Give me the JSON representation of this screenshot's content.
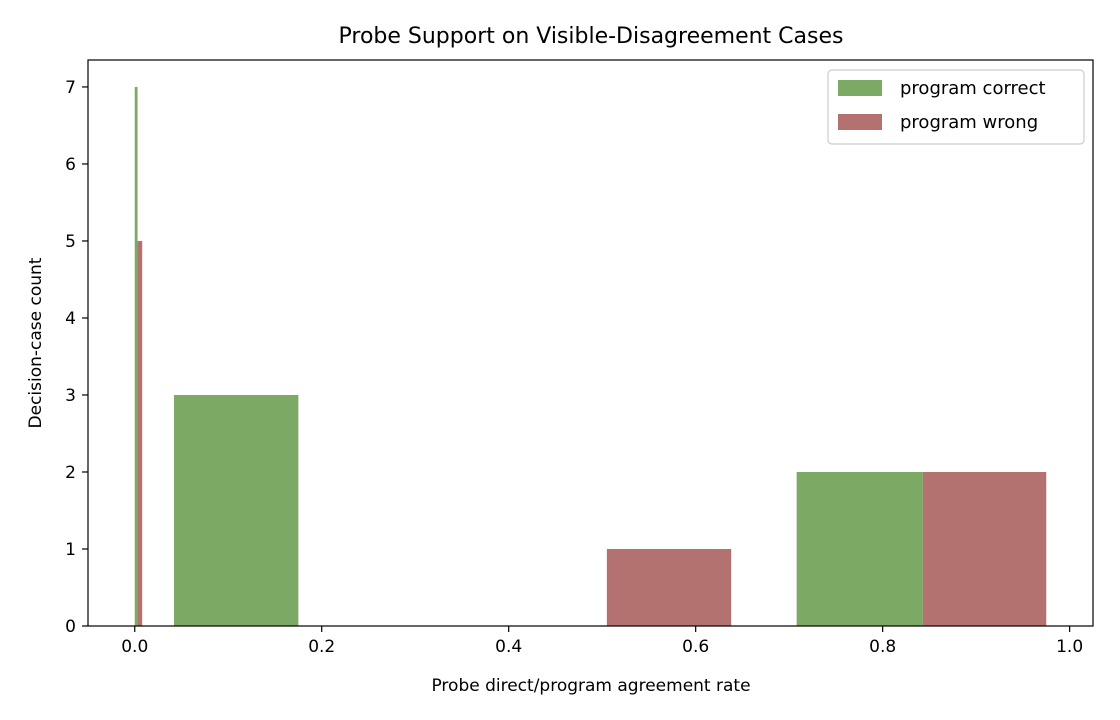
{
  "chart_data": {
    "type": "bar",
    "title": "Probe Support on Visible-Disagreement Cases",
    "xlabel": "Probe direct/program agreement rate",
    "ylabel": "Decision-case count",
    "xlim": [
      -0.05,
      1.025
    ],
    "ylim": [
      0,
      7.35
    ],
    "x_ticks": [
      "0.0",
      "0.2",
      "0.4",
      "0.6",
      "0.8",
      "1.0"
    ],
    "y_ticks": [
      "0",
      "1",
      "2",
      "3",
      "4",
      "5",
      "6",
      "7"
    ],
    "grid": false,
    "legend_position": "top-right",
    "series": [
      {
        "name": "program correct",
        "color": "#6a9e4f",
        "bars": [
          {
            "x0": 0.0,
            "x1": 0.003,
            "count": 7
          },
          {
            "x0": 0.042,
            "x1": 0.175,
            "count": 3
          },
          {
            "x0": 0.708,
            "x1": 0.843,
            "count": 2
          }
        ]
      },
      {
        "name": "program wrong",
        "color": "#a85f5c",
        "bars": [
          {
            "x0": 0.003,
            "x1": 0.008,
            "count": 5
          },
          {
            "x0": 0.505,
            "x1": 0.638,
            "count": 1
          },
          {
            "x0": 0.843,
            "x1": 0.975,
            "count": 2
          }
        ]
      }
    ]
  }
}
